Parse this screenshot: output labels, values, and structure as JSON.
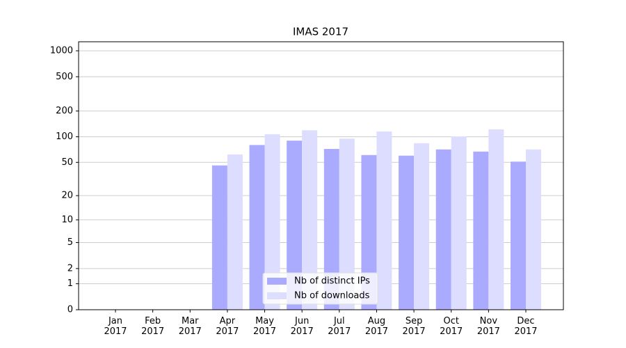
{
  "chart_data": {
    "type": "bar",
    "title": "IMAS 2017",
    "categories": [
      "Jan\n2017",
      "Feb\n2017",
      "Mar\n2017",
      "Apr\n2017",
      "May\n2017",
      "Jun\n2017",
      "Jul\n2017",
      "Aug\n2017",
      "Sep\n2017",
      "Oct\n2017",
      "Nov\n2017",
      "Dec\n2017"
    ],
    "series": [
      {
        "name": "Nb of distinct IPs",
        "color": "#aaaaff",
        "values": [
          0,
          0,
          0,
          46,
          80,
          90,
          72,
          61,
          60,
          71,
          67,
          51
        ]
      },
      {
        "name": "Nb of downloads",
        "color": "#ddddff",
        "values": [
          0,
          0,
          0,
          62,
          107,
          119,
          95,
          115,
          84,
          101,
          122,
          71
        ]
      }
    ],
    "y_scale": "log1p",
    "ylim": [
      0,
      1273
    ],
    "yticks": [
      0,
      1,
      2,
      5,
      10,
      20,
      50,
      100,
      200,
      500,
      1000
    ],
    "grid": true,
    "legend": "lower center"
  }
}
